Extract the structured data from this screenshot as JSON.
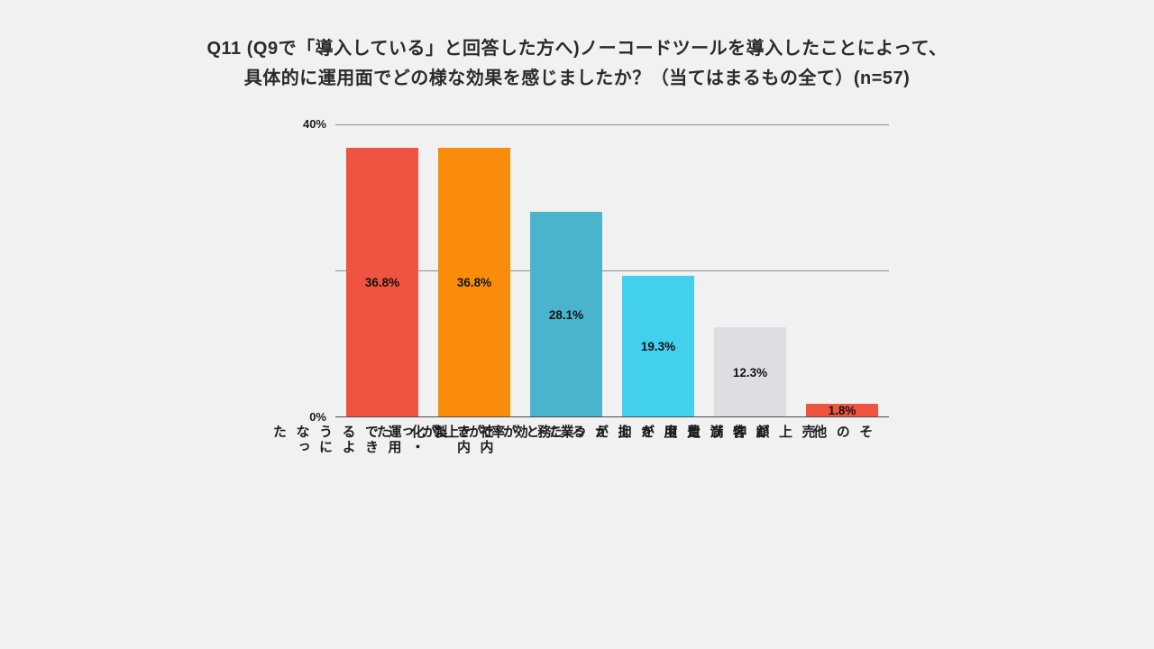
{
  "title": {
    "line1": "Q11 (Q9で「導入している」と回答した方へ)ノーコードツールを導入したことによって、",
    "line2": "具体的に運用面でどの様な効果を感じましたか？（当てはまるもの全て）(n=57)"
  },
  "chart_data": {
    "type": "bar",
    "title": "Q11 (Q9で「導入している」と回答した方へ)ノーコードツールを導入したことによって、具体的に運用面でどの様な効果を感じましたか？（当てはまるもの全て）(n=57)",
    "n": 57,
    "categories": [
      "社内で内製化・運用できるようになった",
      "業務効率が上がった",
      "費用を抑えることができた",
      "顧客満足度が上がった",
      "売上が伸びた",
      "その他"
    ],
    "category_lines": [
      [
        "社内で内製化・運用",
        "できるようになった"
      ],
      [
        "業務効率が上がった"
      ],
      [
        "費用を抑えることができた"
      ],
      [
        "顧客満足度が上がった"
      ],
      [
        "売上が伸びた"
      ],
      [
        "その他"
      ]
    ],
    "values": [
      36.8,
      36.8,
      28.1,
      19.3,
      12.3,
      1.8
    ],
    "value_labels": [
      "36.8%",
      "36.8%",
      "28.1%",
      "19.3%",
      "12.3%",
      "1.8%"
    ],
    "bar_colors": [
      "#EE5440",
      "#F98D0B",
      "#49B4CB",
      "#41D0EE",
      "#DEDEE2",
      "#EE5440"
    ],
    "xlabel": "",
    "ylabel": "",
    "ylim": [
      0,
      40
    ],
    "yticks": [
      {
        "value": 40,
        "label": "40%"
      },
      {
        "value": 20,
        "label": ""
      },
      {
        "value": 0,
        "label": "0%"
      }
    ],
    "grid": true,
    "legend": "none",
    "background_color": "#f1f1f2"
  }
}
